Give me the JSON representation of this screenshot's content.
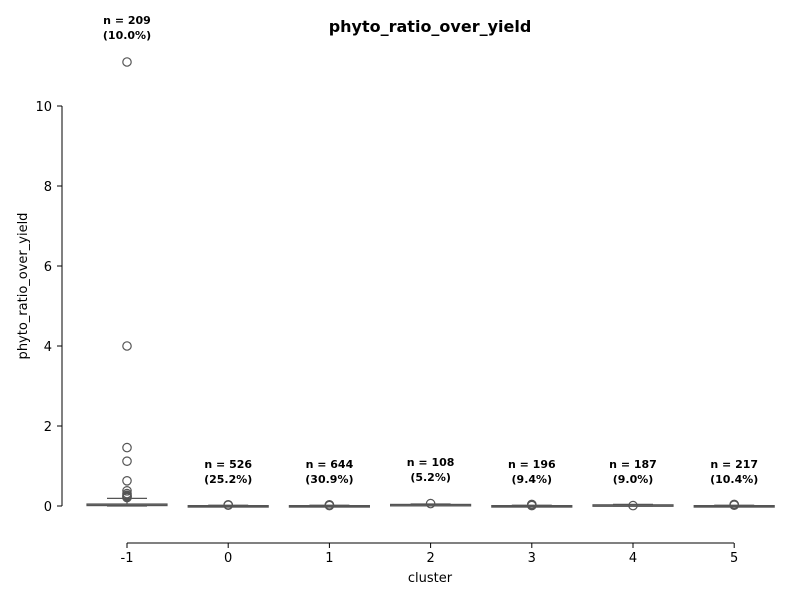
{
  "chart_data": {
    "type": "box",
    "title": "phyto_ratio_over_yield",
    "xlabel": "cluster",
    "ylabel": "phyto_ratio_over_yield",
    "ylim": [
      -0.9,
      11.5
    ],
    "yticks": [
      0,
      2,
      4,
      6,
      8,
      10
    ],
    "categories": [
      "-1",
      "0",
      "1",
      "2",
      "3",
      "4",
      "5"
    ],
    "boxes": [
      {
        "cluster": "-1",
        "q1": 0.01,
        "median": 0.02,
        "q3": 0.05,
        "whisker_low": 0.0,
        "whisker_high": 0.19,
        "fliers": [
          11.1,
          4.0,
          1.46,
          1.12,
          0.63,
          0.38,
          0.31,
          0.27,
          0.25,
          0.23,
          0.21
        ]
      },
      {
        "cluster": "0",
        "q1": 0.0,
        "median": 0.0,
        "q3": 0.01,
        "whisker_low": 0.0,
        "whisker_high": 0.02,
        "fliers": [
          0.03,
          0.02
        ]
      },
      {
        "cluster": "1",
        "q1": 0.0,
        "median": 0.0,
        "q3": 0.01,
        "whisker_low": 0.0,
        "whisker_high": 0.02,
        "fliers": [
          0.03,
          0.02,
          0.01
        ]
      },
      {
        "cluster": "2",
        "q1": 0.02,
        "median": 0.03,
        "q3": 0.04,
        "whisker_low": 0.01,
        "whisker_high": 0.05,
        "fliers": [
          0.06
        ]
      },
      {
        "cluster": "3",
        "q1": 0.0,
        "median": 0.0,
        "q3": 0.01,
        "whisker_low": 0.0,
        "whisker_high": 0.02,
        "fliers": [
          0.04,
          0.03,
          0.02,
          0.01
        ]
      },
      {
        "cluster": "4",
        "q1": 0.01,
        "median": 0.02,
        "q3": 0.03,
        "whisker_low": 0.0,
        "whisker_high": 0.04,
        "fliers": [
          0.01
        ]
      },
      {
        "cluster": "5",
        "q1": 0.0,
        "median": 0.0,
        "q3": 0.01,
        "whisker_low": 0.0,
        "whisker_high": 0.02,
        "fliers": [
          0.04,
          0.03,
          0.02
        ]
      }
    ],
    "annotations": [
      {
        "cluster": "-1",
        "line1": "n = 209",
        "line2": "(10.0%)"
      },
      {
        "cluster": "0",
        "line1": "n = 526",
        "line2": "(25.2%)"
      },
      {
        "cluster": "1",
        "line1": "n = 644",
        "line2": "(30.9%)"
      },
      {
        "cluster": "2",
        "line1": "n = 108",
        "line2": "(5.2%)"
      },
      {
        "cluster": "3",
        "line1": "n = 196",
        "line2": "(9.4%)"
      },
      {
        "cluster": "4",
        "line1": "n = 187",
        "line2": "(9.0%)"
      },
      {
        "cluster": "5",
        "line1": "n = 217",
        "line2": "(10.4%)"
      }
    ],
    "colors": {
      "box_fill": "#cfcfcf",
      "box_edge": "#555555"
    },
    "grid": false,
    "legend": "none"
  }
}
